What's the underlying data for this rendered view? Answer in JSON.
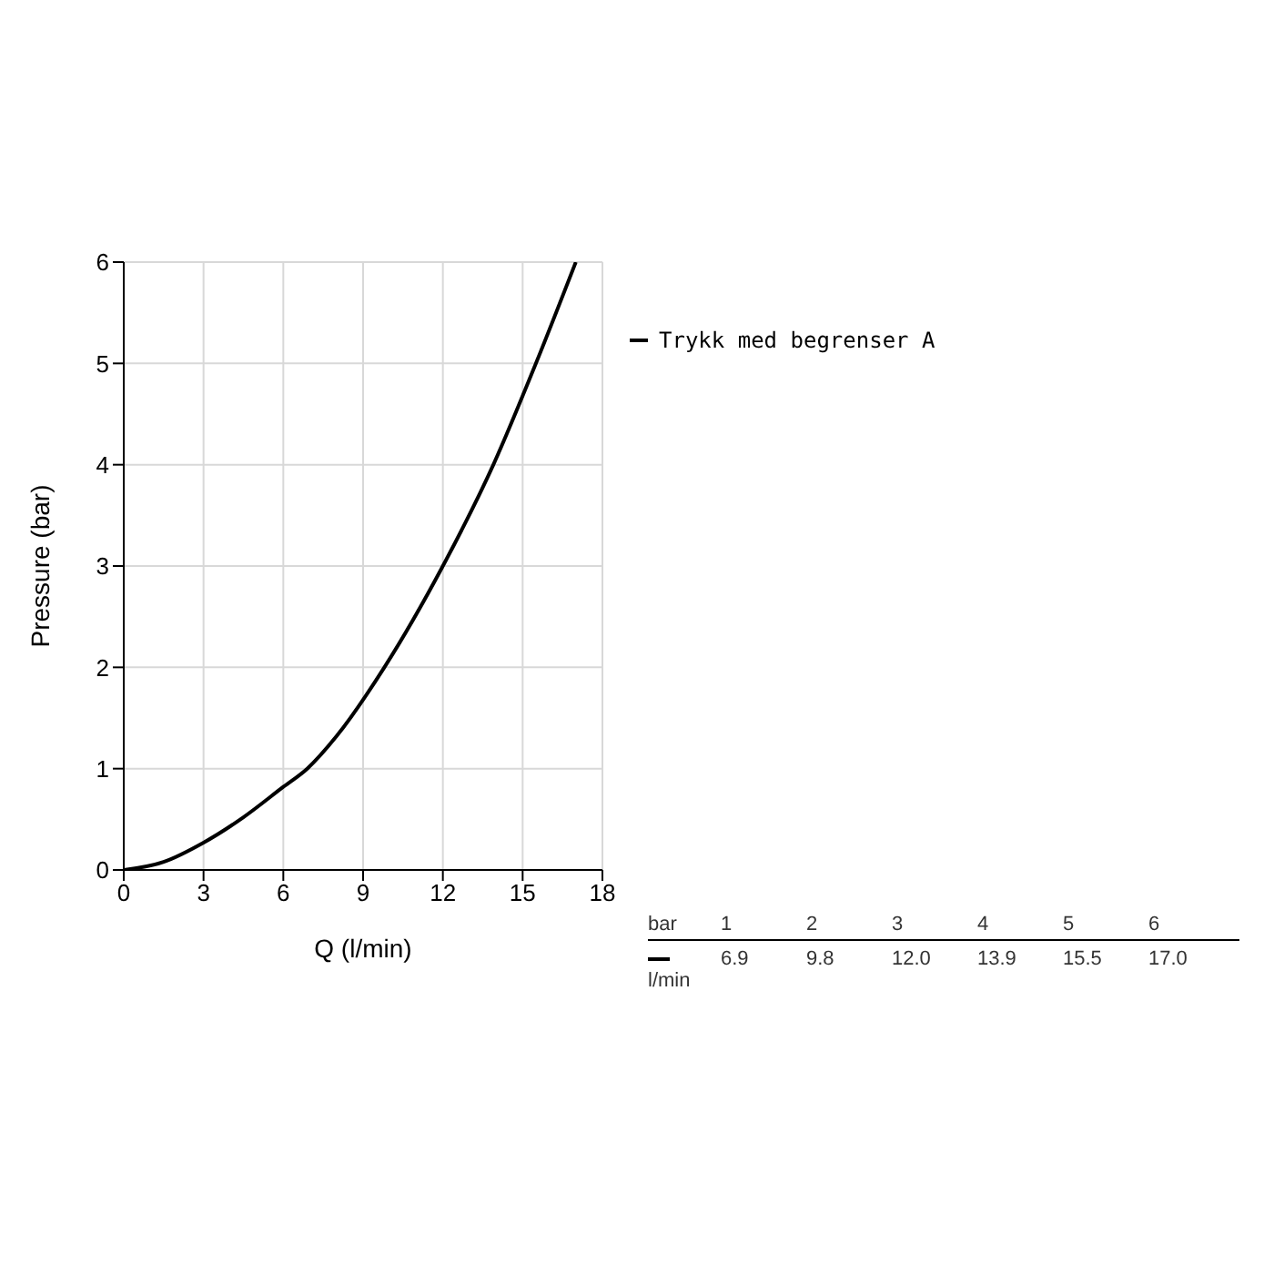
{
  "chart_data": {
    "type": "line",
    "xlabel": "Q (l/min)",
    "ylabel": "Pressure (bar)",
    "xlim": [
      0,
      18
    ],
    "xticks": [
      0,
      3,
      6,
      9,
      12,
      15,
      18
    ],
    "ylim": [
      0,
      6
    ],
    "yticks": [
      0,
      1,
      2,
      3,
      4,
      5,
      6
    ],
    "grid": true,
    "legend": "top right",
    "marker": "none",
    "line_style": "solid",
    "annotations": [
      "bar",
      "1",
      "2",
      "3",
      "4",
      "5",
      "6",
      "l/min",
      "6.9",
      "9.8",
      "12.0",
      "13.9",
      "15.5",
      "17.0"
    ],
    "series": [
      {
        "name": "Trykk med begrenser A",
        "color": "#000000",
        "x": [
          0,
          1.5,
          3,
          4.5,
          6,
          6.9,
          8,
          9.8,
          12,
          13.9,
          15.5,
          17
        ],
        "values": [
          0,
          0.08,
          0.27,
          0.52,
          0.82,
          1,
          1.32,
          2,
          3,
          4,
          5,
          6
        ]
      }
    ]
  }
}
